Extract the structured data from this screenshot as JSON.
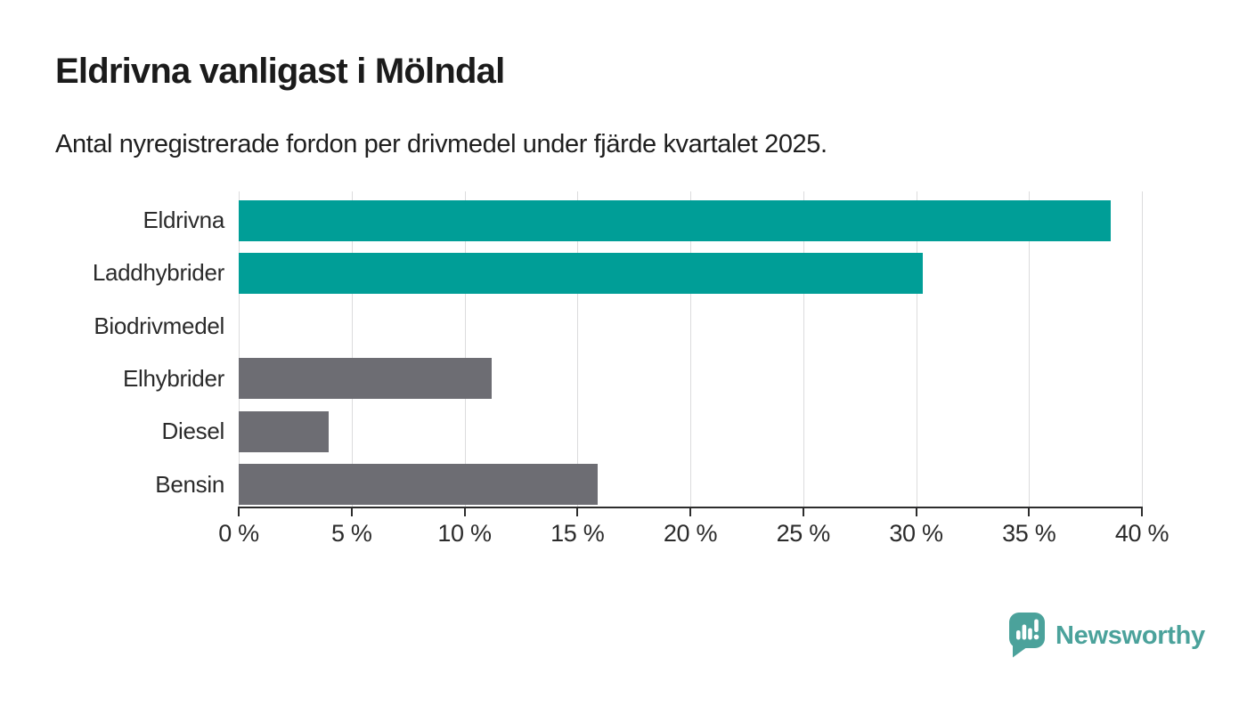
{
  "header": {
    "title": "Eldrivna vanligast i Mölndal",
    "subtitle": "Antal nyregistrerade fordon per drivmedel under fjärde kvartalet 2025."
  },
  "chart_data": {
    "type": "bar",
    "orientation": "horizontal",
    "title": "Eldrivna vanligast i Mölndal",
    "subtitle": "Antal nyregistrerade fordon per drivmedel under fjärde kvartalet 2025.",
    "categories": [
      "Eldrivna",
      "Laddhybrider",
      "Biodrivmedel",
      "Elhybrider",
      "Diesel",
      "Bensin"
    ],
    "values": [
      38.6,
      30.3,
      0,
      11.2,
      4.0,
      15.9
    ],
    "unit": "%",
    "bar_colors": [
      "#009e97",
      "#009e97",
      "#6d6d73",
      "#6d6d73",
      "#6d6d73",
      "#6d6d73"
    ],
    "highlight_color": "#009e97",
    "default_color": "#6d6d73",
    "xlim": [
      0,
      40
    ],
    "x_ticks": [
      0,
      5,
      10,
      15,
      20,
      25,
      30,
      35,
      40
    ],
    "x_tick_suffix": " %",
    "grid": "vertical",
    "gridline_color": "#dcdcdd",
    "axis_color": "#2d2d2d",
    "legend": "none"
  },
  "footer": {
    "brand_name": "Newsworthy",
    "brand_color": "#4ba29b",
    "brand_icon": "newsworthy-pin-barchart-icon"
  }
}
